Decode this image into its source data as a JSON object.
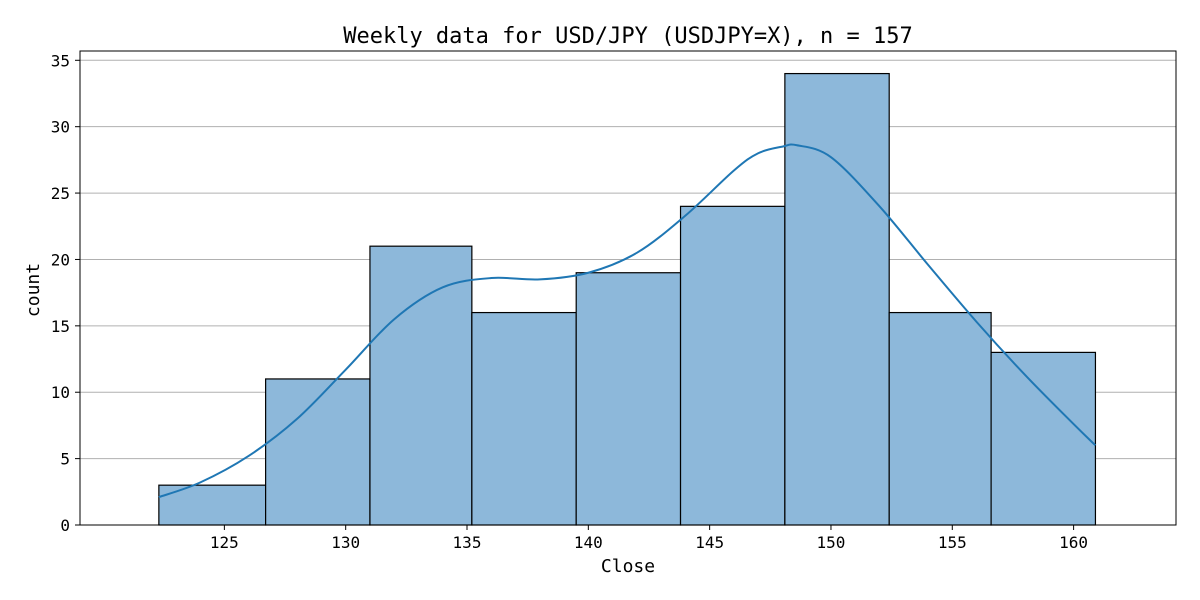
{
  "chart_data": {
    "type": "bar",
    "title": "Weekly data for USD/JPY (USDJPY=X), n = 157",
    "xlabel": "Close",
    "ylabel": "count",
    "xlim": [
      119.05,
      164.22
    ],
    "ylim": [
      0,
      35.7
    ],
    "x_ticks": [
      125,
      130,
      135,
      140,
      145,
      150,
      155,
      160
    ],
    "y_ticks": [
      0,
      5,
      10,
      15,
      20,
      25,
      30,
      35
    ],
    "grid": "horizontal",
    "bins": [
      {
        "x0": 122.3,
        "x1": 126.7,
        "count": 3
      },
      {
        "x0": 126.7,
        "x1": 131.0,
        "count": 11
      },
      {
        "x0": 131.0,
        "x1": 135.2,
        "count": 21
      },
      {
        "x0": 135.2,
        "x1": 139.5,
        "count": 16
      },
      {
        "x0": 139.5,
        "x1": 143.8,
        "count": 19
      },
      {
        "x0": 143.8,
        "x1": 148.1,
        "count": 24
      },
      {
        "x0": 148.1,
        "x1": 152.4,
        "count": 34
      },
      {
        "x0": 152.4,
        "x1": 156.6,
        "count": 16
      },
      {
        "x0": 156.6,
        "x1": 160.9,
        "count": 13
      }
    ],
    "kde": {
      "x": [
        122.3,
        124,
        126,
        128,
        130,
        132,
        134,
        136,
        138,
        140,
        142,
        144,
        146,
        147,
        148,
        148.6,
        150,
        152,
        154,
        156,
        158,
        160,
        160.9
      ],
      "y": [
        2.1,
        3.2,
        5.2,
        8.0,
        11.7,
        15.5,
        17.9,
        18.6,
        18.5,
        19.0,
        20.5,
        23.3,
        26.7,
        28.0,
        28.5,
        28.6,
        27.7,
        24.0,
        19.6,
        15.3,
        11.3,
        7.6,
        6.0
      ]
    },
    "colors": {
      "bar_fill": "#8db8da",
      "bar_edge": "#000000",
      "kde_line": "#1f77b4",
      "grid": "#b0b0b0"
    }
  }
}
